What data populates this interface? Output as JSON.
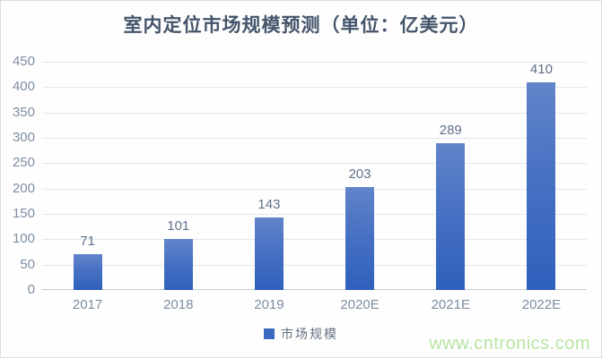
{
  "chart_data": {
    "type": "bar",
    "title": "室内定位市场规模预测（单位：亿美元）",
    "categories": [
      "2017",
      "2018",
      "2019",
      "2020E",
      "2021E",
      "2022E"
    ],
    "series": [
      {
        "name": "市场规模",
        "values": [
          71,
          101,
          143,
          203,
          289,
          410
        ]
      }
    ],
    "xlabel": "",
    "ylabel": "",
    "ylim": [
      0,
      450
    ],
    "ytick_step": 50,
    "grid": true,
    "legend_position": "bottom-center",
    "colors": {
      "title": "#44546a",
      "bar_gradient_top": "#6285ca",
      "bar_gradient_bottom": "#2e60bc",
      "axis_labels": "#7d8da2",
      "value_labels": "#60708a",
      "gridline": "#e3e7ec",
      "baseline": "#c7ccd3",
      "legend_swatch": "#3b6ac1"
    }
  },
  "legend": {
    "label": "市场规模"
  },
  "watermark": {
    "text": "www.cntronics.com",
    "color": "#b8e4a4"
  }
}
